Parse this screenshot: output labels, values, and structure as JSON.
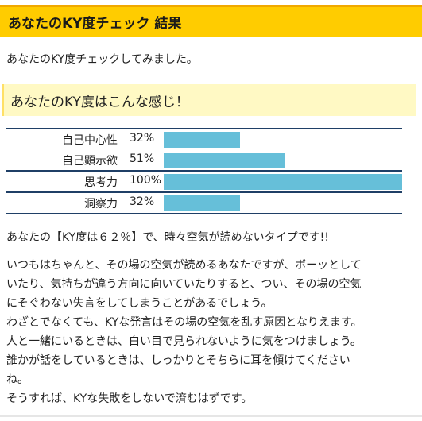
{
  "header": {
    "title": "あなたのKY度チェック 結果"
  },
  "intro": "あなたのKY度チェックしてみました。",
  "section_heading": "あなたのKY度はこんな感じ！",
  "results": [
    {
      "label": "自己中心性",
      "percent_text": "32%",
      "fill_percent": 32
    },
    {
      "label": "自己顕示欲",
      "percent_text": "51%",
      "fill_percent": 51
    },
    {
      "label": "思考力",
      "percent_text": "100%",
      "fill_percent": 100
    },
    {
      "label": "洞察力",
      "percent_text": "32%",
      "fill_percent": 32
    }
  ],
  "colors": {
    "title_bar": "#ffcc00",
    "title_border": "#f0a800",
    "sub_heading_bg": "#fff9c4",
    "bar_fill": "#66bfd9",
    "table_rule": "#1f3f66"
  },
  "summary": "あなたの【KY度は６２％】で、時々空気が読めないタイプです!!",
  "detail_lines": [
    "いつもはちゃんと、その場の空気が読めるあなたですが、ボーッとして",
    "いたり、気持ちが違う方向に向いていたりすると、つい、その場の空気",
    "にそぐわない失言をしてしまうことがあるでしょう。",
    "わざとでなくても、KYな発言はその場の空気を乱す原因となりえます。",
    "人と一緒にいるときは、白い目で見られないように気をつけましょう。",
    "誰かが話をしているときは、しっかりとそちらに耳を傾けてください",
    "ね。",
    "そうすれば、KYな失敗をしないで済むはずです。"
  ]
}
